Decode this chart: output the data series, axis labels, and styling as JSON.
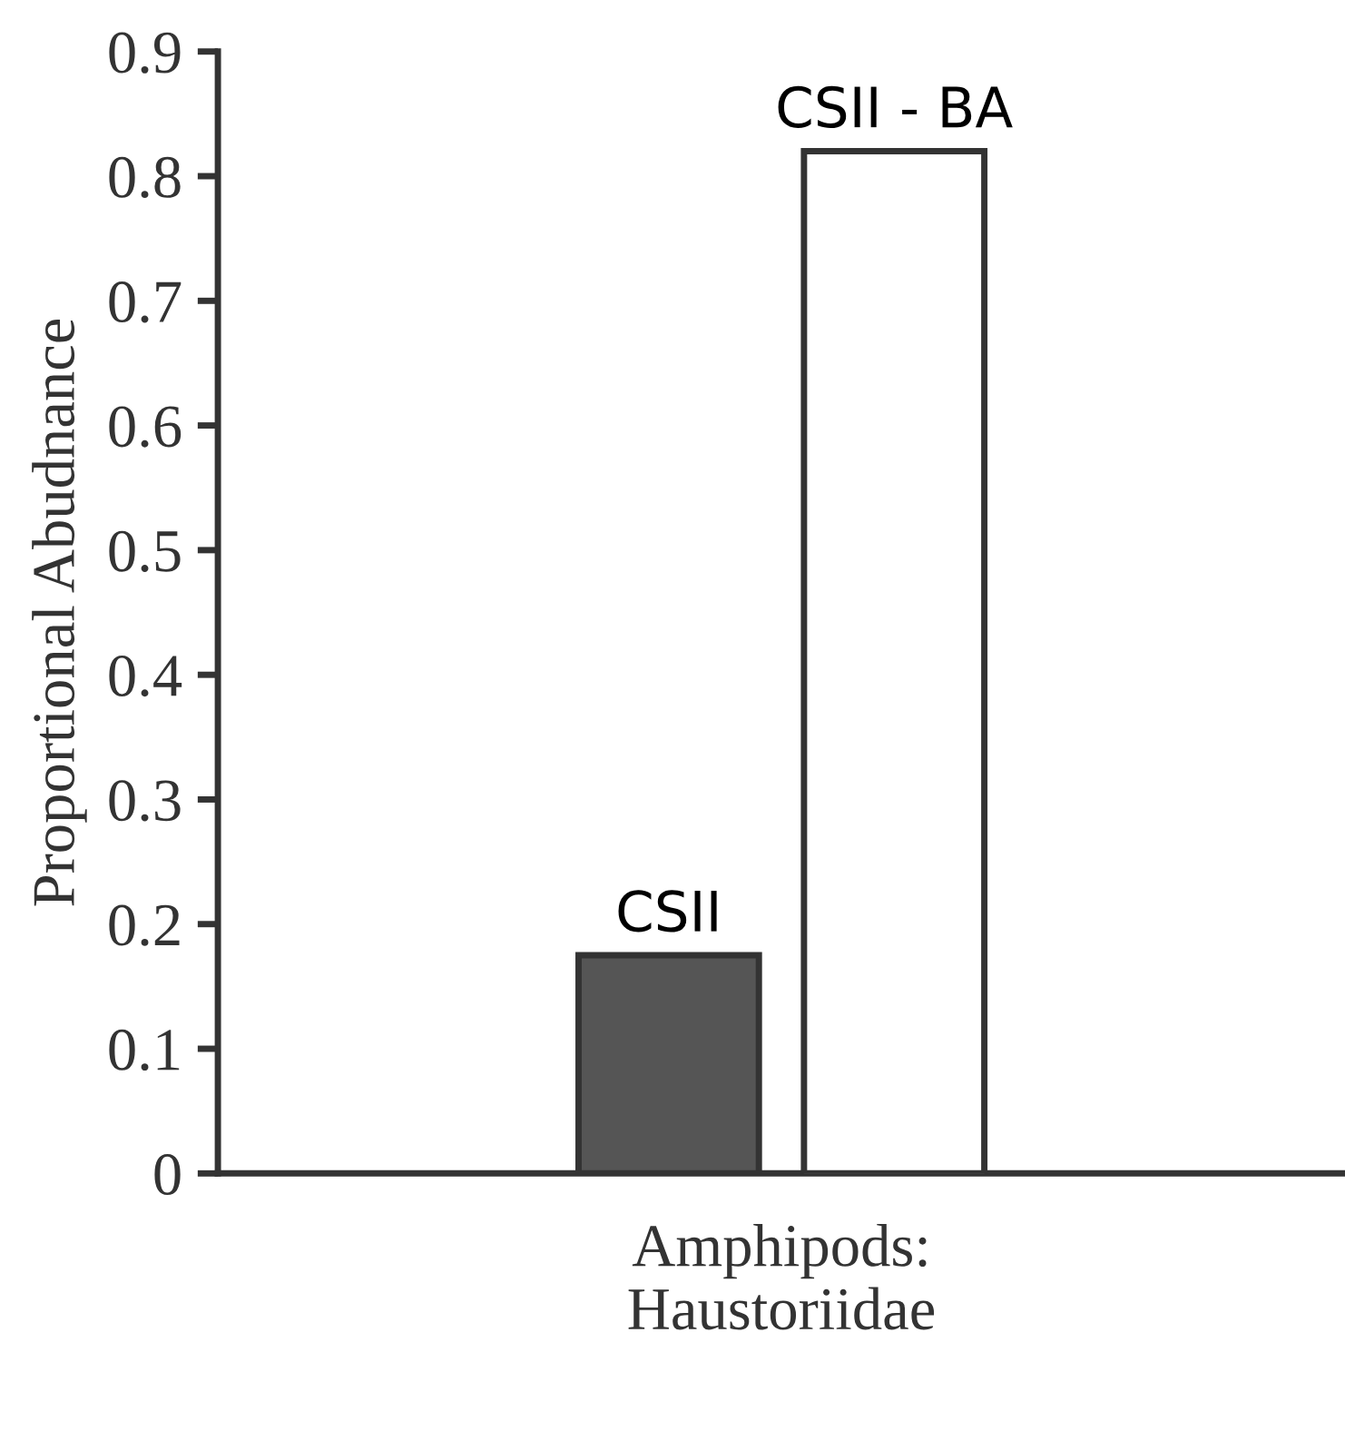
{
  "chart_data": {
    "type": "bar",
    "ylabel": "Proportional Abudnance",
    "categories": [
      "Amphipods:\nHaustoriidae"
    ],
    "series": [
      {
        "name": "CSII",
        "color": "#555555",
        "values": [
          0.175
        ]
      },
      {
        "name": "CSII - BA",
        "color": "#ffffff",
        "values": [
          0.82
        ]
      }
    ],
    "ylim": [
      0,
      0.9
    ],
    "yticks": [
      0,
      0.1,
      0.2,
      0.3,
      0.4,
      0.5,
      0.6,
      0.7,
      0.8,
      0.9
    ],
    "grid": false
  }
}
